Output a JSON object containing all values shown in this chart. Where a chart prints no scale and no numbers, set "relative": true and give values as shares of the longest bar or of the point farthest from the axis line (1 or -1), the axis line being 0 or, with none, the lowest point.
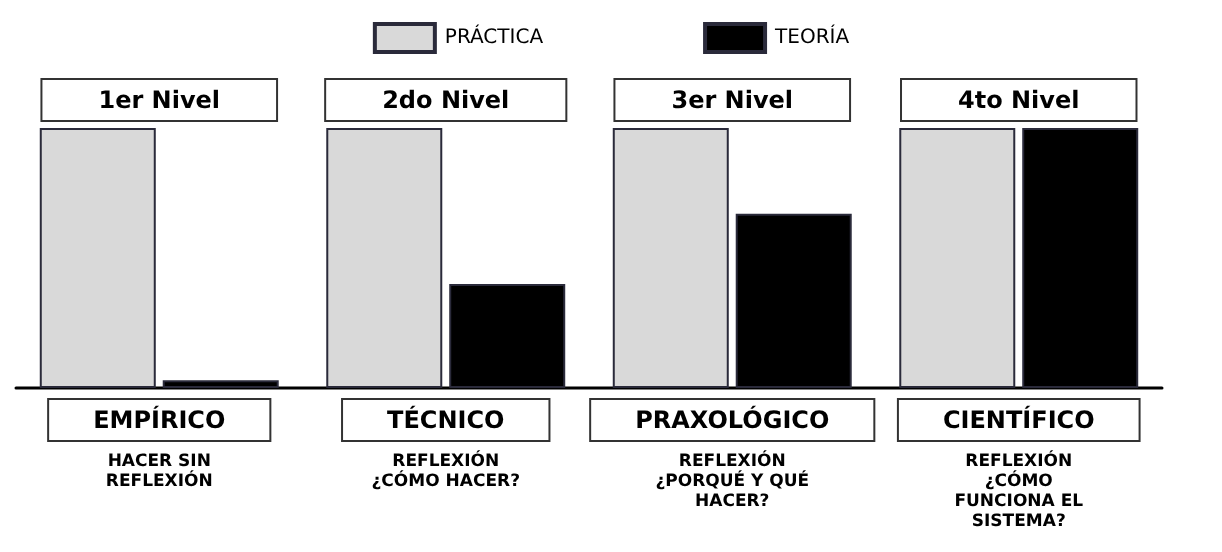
{
  "chart_data": {
    "type": "bar",
    "relative": true,
    "categories": [
      "EMPÍRICO",
      "TÉCNICO",
      "PRAXOLÓGICO",
      "CIENTÍFICO"
    ],
    "series": [
      {
        "name": "PRÁCTICA",
        "color": "#d9d9d9",
        "values": [
          1,
          1,
          1,
          1
        ]
      },
      {
        "name": "TEORÍA",
        "color": "#000000",
        "values": [
          0.03,
          0.4,
          0.67,
          1
        ]
      }
    ],
    "legend": "top",
    "annotations": [
      {
        "text": "1er Nivel",
        "x": "EMPÍRICO",
        "y": 1
      },
      {
        "text": "2do Nivel",
        "x": "TÉCNICO",
        "y": 1
      },
      {
        "text": "3er Nivel",
        "x": "PRAXOLÓGICO",
        "y": 1
      },
      {
        "text": "4to Nivel",
        "x": "CIENTÍFICO",
        "y": 1
      },
      "HACER SIN\nREFLEXIÓN",
      "REFLEXIÓN\n¿CÓMO HACER?",
      "REFLEXIÓN\n¿PORQUÉ Y QUÉ\nHACER?",
      "REFLEXIÓN\n¿CÓMO\nFUNCIONA EL\nSISTEMA?"
    ]
  }
}
